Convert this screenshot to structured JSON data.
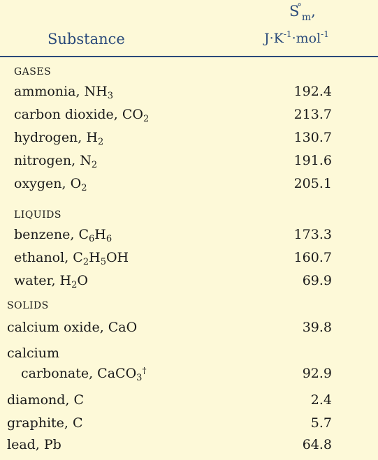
{
  "header": {
    "substance_label": "Substance",
    "symbol": "S",
    "symbol_superscript": "°",
    "symbol_subscript": "m",
    "symbol_suffix": ",",
    "units": {
      "j": "J",
      "k": "K",
      "k_exp": "-1",
      "mol": "mol",
      "mol_exp": "-1"
    }
  },
  "sections": {
    "gases": "GASES",
    "liquids": "LIQUIDS",
    "solids": "SOLIDS"
  },
  "rows": [
    {
      "name": "ammonia, NH",
      "sub": "3",
      "tail": "",
      "value": "192.4"
    },
    {
      "name": "carbon dioxide, CO",
      "sub": "2",
      "tail": "",
      "value": "213.7"
    },
    {
      "name": "hydrogen, H",
      "sub": "2",
      "tail": "",
      "value": "130.7"
    },
    {
      "name": "nitrogen, N",
      "sub": "2",
      "tail": "",
      "value": "191.6"
    },
    {
      "name": "oxygen, O",
      "sub": "2",
      "tail": "",
      "value": "205.1"
    },
    {
      "name": "benzene, C",
      "sub": "6",
      "mid": "H",
      "sub2": "6",
      "tail": "",
      "value": "173.3"
    },
    {
      "name": "ethanol, C",
      "sub": "2",
      "mid": "H",
      "sub2": "5",
      "tail": "OH",
      "value": "160.7"
    },
    {
      "name": "water, H",
      "sub": "2",
      "tail": "O",
      "value": "69.9"
    },
    {
      "name": "calcium oxide, CaO",
      "value": "39.8"
    },
    {
      "name": "calcium",
      "name_line2": "carbonate, CaCO",
      "sub": "3",
      "dagger": "†",
      "value": "92.9"
    },
    {
      "name": "diamond, C",
      "value": "2.4"
    },
    {
      "name": "graphite, C",
      "value": "5.7"
    },
    {
      "name": "lead, Pb",
      "value": "64.8"
    }
  ]
}
